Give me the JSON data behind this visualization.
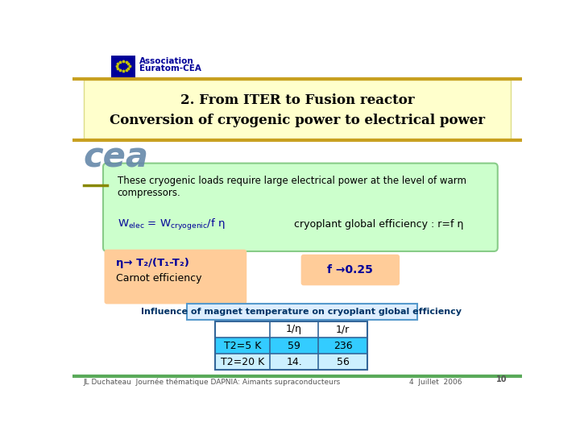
{
  "slide_bg": "#ffffff",
  "header_bar_color": "#c8a020",
  "footer_bar_color": "#5aaa5a",
  "title_box_color": "#ffffcc",
  "title_box_border": "#dddd88",
  "title_line1": "2. From ITER to Fusion reactor",
  "title_line2": "Conversion of cryogenic power to electrical power",
  "green_box_color": "#ccffcc",
  "green_box_border": "#88cc88",
  "green_box_text1": "These cryogenic loads require large electrical power at the level of warm",
  "green_box_text2": "compressors.",
  "orange_box_color": "#ffcc99",
  "carnot_line1": "η→ T₂/(T₁-T₂)",
  "carnot_line2": "Carnot efficiency",
  "f_text": "f →0.25",
  "influence_text": "Influence of magnet temperature on cryoplant global efficiency",
  "table_header": [
    "",
    "1/η",
    "1/r"
  ],
  "table_row1": [
    "T2=5 K",
    "59",
    "236"
  ],
  "table_row2": [
    "T2=20 K",
    "14.",
    "56"
  ],
  "table_row1_color": "#33ccff",
  "table_row2_color": "#ccf0ff",
  "footer_text": "JL Duchateau  Journée thématique DAPNIA: Aimants supraconducteurs",
  "footer_date": "4  Juillet  2006",
  "footer_page": "10",
  "eu_flag_blue": "#000099",
  "assoc_text1": "Association",
  "assoc_text2": "Euratom-CEA",
  "cea_color": "#003399",
  "sep_line_color": "#888888"
}
